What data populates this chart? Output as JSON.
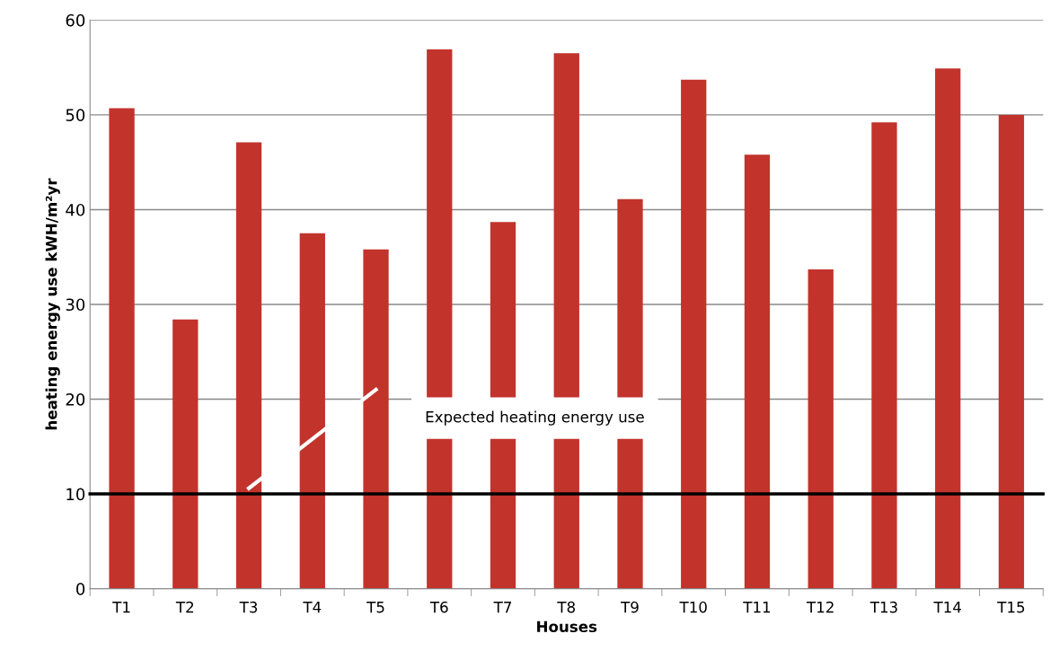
{
  "chart_data": {
    "type": "bar",
    "xlabel": "Houses",
    "ylabel": "heating energy use kWH/m²yr",
    "categories": [
      "T1",
      "T2",
      "T3",
      "T4",
      "T5",
      "T6",
      "T7",
      "T8",
      "T9",
      "T10",
      "T11",
      "T12",
      "T13",
      "T14",
      "T15"
    ],
    "values": [
      50.7,
      28.4,
      47.1,
      37.5,
      35.8,
      56.9,
      38.7,
      56.5,
      41.1,
      53.7,
      45.8,
      33.7,
      49.2,
      54.9,
      50.0
    ],
    "color": "#c2332c",
    "ylim": [
      0,
      60
    ],
    "yticks": [
      0,
      10,
      20,
      30,
      40,
      50,
      60
    ],
    "grid": "y",
    "ref_lines": [
      {
        "axis": "y",
        "value": 10,
        "label": "Expected heating energy use",
        "color": "#000000",
        "line_style": "solid"
      }
    ]
  }
}
